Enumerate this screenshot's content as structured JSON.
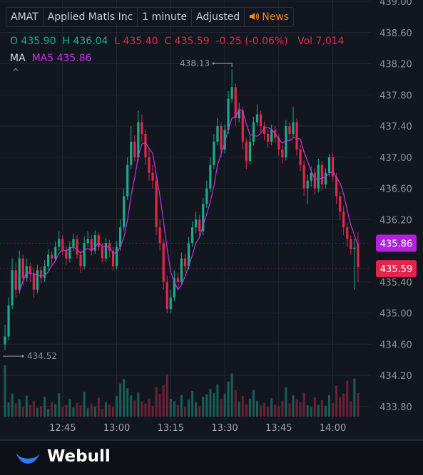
{
  "header": {
    "symbol": "AMAT",
    "name": "Applied Matls Inc",
    "interval": "1 minute",
    "adjustment": "Adjusted",
    "news": "News"
  },
  "quote": {
    "o_label": "O",
    "open": "435.90",
    "h_label": "H",
    "high": "436.04",
    "l_label": "L",
    "low": "435.40",
    "c_label": "C",
    "close": "435.59",
    "change": "-0.25 (-0.06%)",
    "vol_label": "Vol",
    "volume": "7,014"
  },
  "indicator": {
    "label": "MA",
    "value": "MA5 435.86"
  },
  "footer": {
    "brand": "Webull"
  },
  "chart_data": {
    "type": "candlestick",
    "x": [
      "12:29",
      "12:30",
      "12:31",
      "12:32",
      "12:33",
      "12:34",
      "12:35",
      "12:36",
      "12:37",
      "12:38",
      "12:39",
      "12:40",
      "12:41",
      "12:42",
      "12:43",
      "12:44",
      "12:45",
      "12:46",
      "12:47",
      "12:48",
      "12:49",
      "12:50",
      "12:51",
      "12:52",
      "12:53",
      "12:54",
      "12:55",
      "12:56",
      "12:57",
      "12:58",
      "12:59",
      "13:00",
      "13:01",
      "13:02",
      "13:03",
      "13:04",
      "13:05",
      "13:06",
      "13:07",
      "13:08",
      "13:09",
      "13:10",
      "13:11",
      "13:12",
      "13:13",
      "13:14",
      "13:15",
      "13:16",
      "13:17",
      "13:18",
      "13:19",
      "13:20",
      "13:21",
      "13:22",
      "13:23",
      "13:24",
      "13:25",
      "13:26",
      "13:27",
      "13:28",
      "13:29",
      "13:30",
      "13:31",
      "13:32",
      "13:33",
      "13:34",
      "13:35",
      "13:36",
      "13:37",
      "13:38",
      "13:39",
      "13:40",
      "13:41",
      "13:42",
      "13:43",
      "13:44",
      "13:45",
      "13:46",
      "13:47",
      "13:48",
      "13:49",
      "13:50",
      "13:51",
      "13:52",
      "13:53",
      "13:54",
      "13:55",
      "13:56",
      "13:57",
      "13:58",
      "13:59",
      "14:00",
      "14:01",
      "14:02",
      "14:03",
      "14:04",
      "14:05",
      "14:06",
      "14:07"
    ],
    "candles": [
      [
        434.6,
        434.85,
        434.52,
        434.7
      ],
      [
        434.7,
        435.2,
        434.65,
        435.1
      ],
      [
        435.1,
        435.7,
        435.05,
        435.55
      ],
      [
        435.55,
        435.65,
        435.2,
        435.3
      ],
      [
        435.3,
        435.8,
        435.25,
        435.7
      ],
      [
        435.7,
        435.75,
        435.35,
        435.45
      ],
      [
        435.45,
        435.7,
        435.4,
        435.6
      ],
      [
        435.6,
        435.65,
        435.4,
        435.5
      ],
      [
        435.5,
        435.58,
        435.2,
        435.3
      ],
      [
        435.3,
        435.62,
        435.25,
        435.55
      ],
      [
        435.55,
        435.6,
        435.38,
        435.45
      ],
      [
        435.45,
        435.68,
        435.4,
        435.6
      ],
      [
        435.6,
        435.82,
        435.55,
        435.75
      ],
      [
        435.75,
        435.8,
        435.62,
        435.7
      ],
      [
        435.7,
        435.92,
        435.66,
        435.85
      ],
      [
        435.85,
        436.05,
        435.8,
        435.95
      ],
      [
        435.95,
        436.0,
        435.75,
        435.8
      ],
      [
        435.8,
        435.86,
        435.62,
        435.7
      ],
      [
        435.7,
        435.92,
        435.65,
        435.85
      ],
      [
        435.85,
        436.02,
        435.8,
        435.95
      ],
      [
        435.95,
        436.0,
        435.7,
        435.75
      ],
      [
        435.75,
        435.8,
        435.52,
        435.6
      ],
      [
        435.6,
        435.98,
        435.56,
        435.9
      ],
      [
        435.9,
        436.05,
        435.85,
        435.95
      ],
      [
        435.95,
        436.0,
        435.74,
        435.8
      ],
      [
        435.8,
        436.06,
        435.76,
        436.0
      ],
      [
        436.0,
        436.04,
        435.8,
        435.85
      ],
      [
        435.85,
        435.9,
        435.65,
        435.7
      ],
      [
        435.7,
        435.96,
        435.66,
        435.9
      ],
      [
        435.9,
        435.94,
        435.72,
        435.8
      ],
      [
        435.8,
        435.85,
        435.55,
        435.6
      ],
      [
        435.6,
        435.92,
        435.56,
        435.85
      ],
      [
        435.85,
        436.2,
        435.8,
        436.1
      ],
      [
        436.1,
        436.6,
        436.05,
        436.5
      ],
      [
        436.5,
        437.0,
        436.45,
        436.9
      ],
      [
        436.9,
        437.4,
        436.85,
        437.2
      ],
      [
        437.2,
        437.28,
        436.95,
        437.0
      ],
      [
        437.0,
        437.6,
        436.95,
        437.45
      ],
      [
        437.45,
        437.55,
        437.2,
        437.3
      ],
      [
        437.3,
        437.36,
        436.9,
        437.0
      ],
      [
        437.0,
        437.1,
        436.7,
        436.8
      ],
      [
        436.8,
        436.9,
        436.6,
        436.7
      ],
      [
        436.7,
        436.78,
        436.0,
        436.1
      ],
      [
        436.1,
        436.2,
        435.8,
        435.9
      ],
      [
        435.9,
        435.95,
        435.3,
        435.4
      ],
      [
        435.4,
        435.48,
        435.0,
        435.05
      ],
      [
        435.05,
        435.3,
        435.0,
        435.2
      ],
      [
        435.2,
        435.55,
        435.15,
        435.45
      ],
      [
        435.45,
        435.52,
        435.3,
        435.4
      ],
      [
        435.4,
        435.78,
        435.36,
        435.7
      ],
      [
        435.7,
        435.76,
        435.52,
        435.6
      ],
      [
        435.6,
        435.98,
        435.56,
        435.9
      ],
      [
        435.9,
        436.18,
        435.85,
        436.1
      ],
      [
        436.1,
        436.3,
        436.02,
        436.2
      ],
      [
        436.2,
        436.26,
        435.98,
        436.05
      ],
      [
        436.05,
        436.48,
        436.0,
        436.4
      ],
      [
        436.4,
        436.7,
        436.35,
        436.6
      ],
      [
        436.6,
        437.0,
        436.55,
        436.9
      ],
      [
        436.9,
        437.3,
        436.85,
        437.2
      ],
      [
        437.2,
        437.5,
        437.15,
        437.4
      ],
      [
        437.4,
        437.45,
        437.0,
        437.1
      ],
      [
        437.1,
        437.42,
        437.05,
        437.35
      ],
      [
        437.35,
        437.85,
        437.3,
        437.75
      ],
      [
        437.75,
        438.13,
        437.7,
        437.9
      ],
      [
        437.9,
        437.95,
        437.4,
        437.5
      ],
      [
        437.5,
        437.7,
        437.45,
        437.6
      ],
      [
        437.6,
        437.65,
        437.1,
        437.2
      ],
      [
        437.2,
        437.25,
        436.85,
        436.95
      ],
      [
        436.95,
        437.28,
        436.9,
        437.2
      ],
      [
        437.2,
        437.52,
        437.15,
        437.45
      ],
      [
        437.45,
        437.68,
        437.4,
        437.55
      ],
      [
        437.55,
        437.6,
        437.32,
        437.4
      ],
      [
        437.4,
        437.46,
        437.22,
        437.3
      ],
      [
        437.3,
        437.36,
        437.12,
        437.2
      ],
      [
        437.2,
        437.42,
        437.15,
        437.35
      ],
      [
        437.35,
        437.4,
        437.18,
        437.25
      ],
      [
        437.25,
        437.3,
        437.02,
        437.1
      ],
      [
        437.1,
        437.16,
        436.92,
        437.0
      ],
      [
        437.0,
        437.48,
        436.96,
        437.4
      ],
      [
        437.4,
        437.45,
        437.22,
        437.3
      ],
      [
        437.3,
        437.65,
        437.25,
        437.45
      ],
      [
        437.45,
        437.5,
        437.02,
        437.1
      ],
      [
        437.1,
        437.16,
        436.82,
        436.9
      ],
      [
        436.9,
        436.96,
        436.5,
        436.6
      ],
      [
        436.6,
        436.78,
        436.4,
        436.7
      ],
      [
        436.7,
        436.88,
        436.62,
        436.8
      ],
      [
        436.8,
        436.86,
        436.52,
        436.6
      ],
      [
        436.6,
        436.98,
        436.55,
        436.9
      ],
      [
        436.9,
        436.95,
        436.58,
        436.65
      ],
      [
        436.65,
        436.86,
        436.6,
        436.8
      ],
      [
        436.8,
        437.05,
        436.75,
        437.0
      ],
      [
        437.0,
        437.06,
        436.68,
        436.75
      ],
      [
        436.75,
        436.8,
        436.4,
        436.5
      ],
      [
        436.5,
        436.56,
        436.2,
        436.3
      ],
      [
        436.3,
        436.38,
        436.0,
        436.1
      ],
      [
        436.1,
        436.16,
        435.85,
        435.95
      ],
      [
        435.95,
        436.0,
        435.75,
        435.82
      ],
      [
        435.82,
        435.95,
        435.3,
        435.84
      ],
      [
        435.9,
        436.04,
        435.4,
        435.59
      ]
    ],
    "series": [
      {
        "name": "MA5",
        "color": "#c434e0",
        "values": [
          null,
          null,
          null,
          null,
          435.27,
          435.42,
          435.52,
          435.51,
          435.51,
          435.48,
          435.48,
          435.48,
          435.53,
          435.61,
          435.67,
          435.77,
          435.81,
          435.8,
          435.83,
          435.85,
          435.81,
          435.77,
          435.81,
          435.83,
          435.8,
          435.85,
          435.9,
          435.86,
          435.85,
          435.85,
          435.77,
          435.77,
          435.85,
          435.97,
          436.19,
          436.51,
          436.74,
          437.01,
          437.17,
          437.19,
          437.11,
          437.05,
          436.78,
          436.5,
          436.18,
          435.83,
          435.53,
          435.4,
          435.3,
          435.36,
          435.47,
          435.61,
          435.74,
          435.9,
          435.97,
          436.13,
          436.27,
          436.43,
          436.63,
          436.9,
          437.04,
          437.19,
          437.36,
          437.5,
          437.52,
          437.62,
          437.59,
          437.43,
          437.29,
          437.28,
          437.27,
          437.31,
          437.38,
          437.38,
          437.36,
          437.3,
          437.24,
          437.18,
          437.22,
          437.21,
          437.25,
          437.25,
          437.23,
          437.07,
          436.95,
          436.82,
          436.72,
          436.72,
          436.73,
          436.75,
          436.79,
          436.82,
          436.74,
          436.67,
          436.53,
          436.32,
          436.13,
          436.0,
          435.86
        ]
      }
    ],
    "volume": {
      "values": [
        15200,
        4200,
        6800,
        3900,
        5100,
        2800,
        6200,
        3400,
        4700,
        2600,
        3100,
        5800,
        2400,
        4300,
        3700,
        6900,
        2900,
        3500,
        5200,
        2700,
        4100,
        3300,
        7400,
        2500,
        3800,
        3000,
        5600,
        2300,
        4400,
        3600,
        2900,
        6100,
        9800,
        11200,
        8400,
        6300,
        4800,
        7200,
        4500,
        3900,
        5400,
        3200,
        8800,
        6700,
        9400,
        12600,
        5300,
        4600,
        3500,
        6400,
        2800,
        5000,
        7600,
        4200,
        3100,
        5900,
        6600,
        8200,
        7000,
        9600,
        5200,
        6800,
        10400,
        12800,
        7800,
        4400,
        6100,
        3700,
        5300,
        7900,
        4600,
        3300,
        4100,
        2900,
        5500,
        3600,
        3100,
        4700,
        8600,
        3900,
        6300,
        5100,
        4200,
        7100,
        3400,
        2800,
        5700,
        3500,
        4900,
        3200,
        6400,
        4000,
        9200,
        5800,
        6900,
        10600,
        4500,
        11300,
        7014
      ]
    },
    "ylim": [
      433.62,
      439.0
    ],
    "yticks": [
      {
        "value": 433.8,
        "label": "433.80"
      },
      {
        "value": 434.2,
        "label": "434.20"
      },
      {
        "value": 434.6,
        "label": "434.60"
      },
      {
        "value": 435,
        "label": "435.00"
      },
      {
        "value": 435.4,
        "label": "435.40"
      },
      {
        "value": 436.2,
        "label": "436.20"
      },
      {
        "value": 436.6,
        "label": "436.60"
      },
      {
        "value": 437,
        "label": "437.00"
      },
      {
        "value": 437.4,
        "label": "437.40"
      },
      {
        "value": 437.8,
        "label": "437.80"
      },
      {
        "value": 438.2,
        "label": "438.20"
      },
      {
        "value": 438.6,
        "label": "438.60"
      },
      {
        "value": 439,
        "label": "439.00"
      }
    ],
    "xticks": [
      "12:45",
      "13:00",
      "13:15",
      "13:30",
      "13:45",
      "14:00"
    ],
    "grid": true,
    "up_color": "#1fa98c",
    "down_color": "#e0294a",
    "high_label": "438.13",
    "low_label": "434.52",
    "price_tags": [
      {
        "text": "435.86",
        "color": "#b420dc"
      },
      {
        "text": "435.59",
        "color": "#e0264b"
      }
    ]
  }
}
